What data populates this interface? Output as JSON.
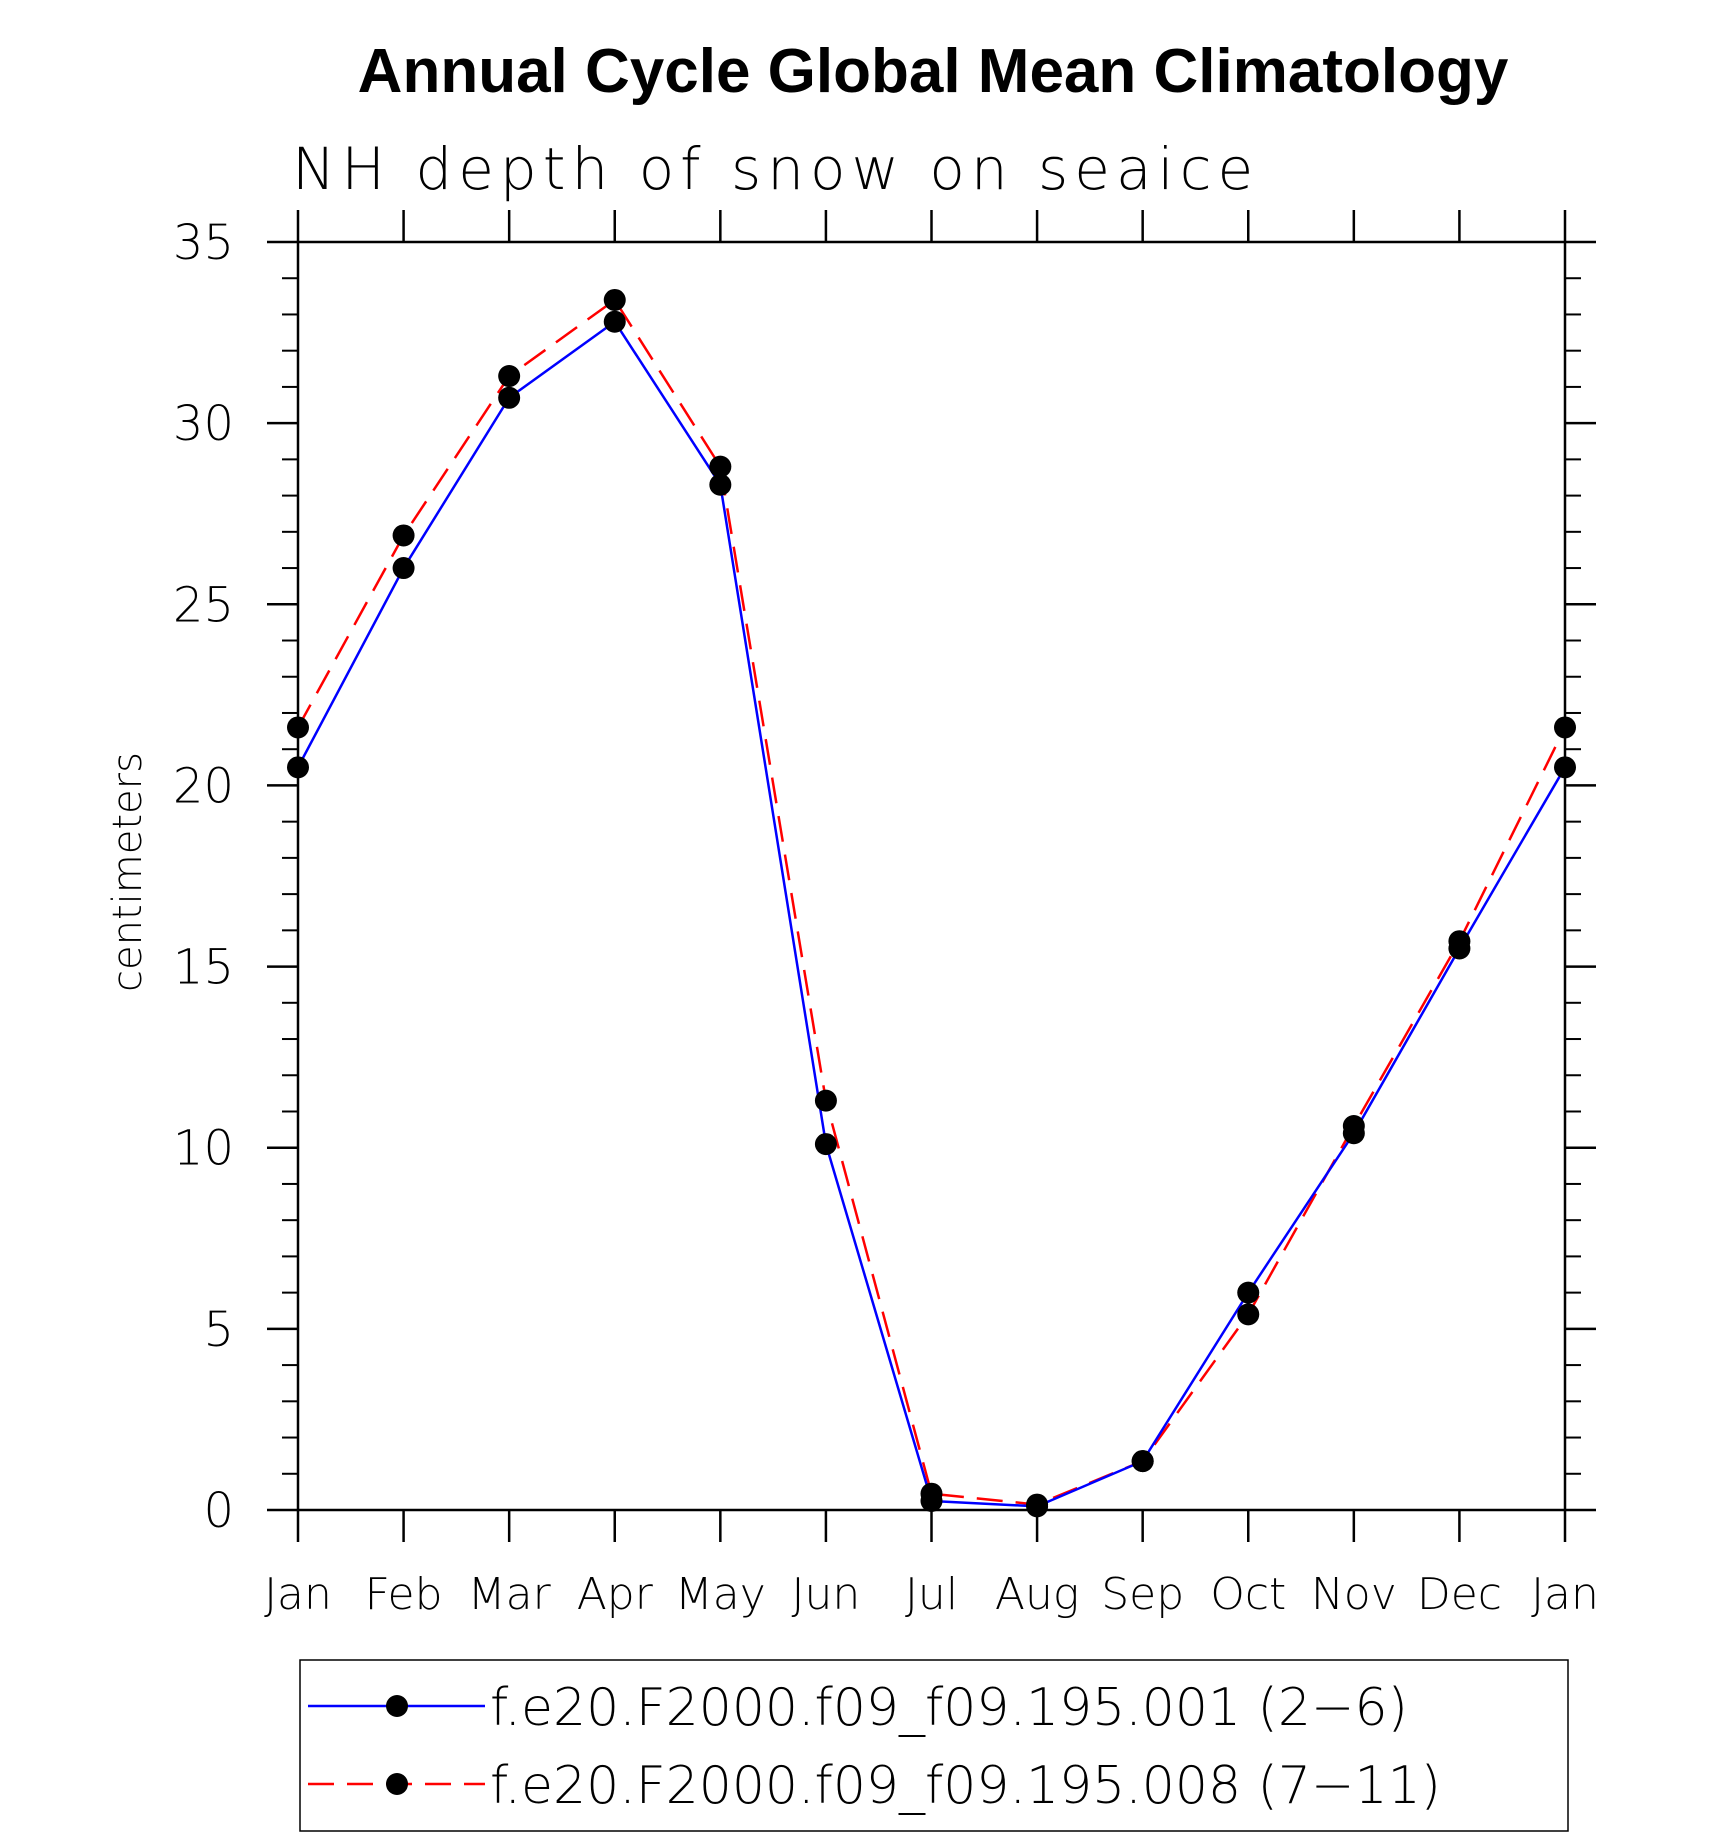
{
  "chart_data": {
    "type": "line",
    "title": "Annual Cycle Global Mean Climatology",
    "subtitle": "NH depth of snow on seaice",
    "xlabel": "",
    "ylabel": "centimeters",
    "categories": [
      "Jan",
      "Feb",
      "Mar",
      "Apr",
      "May",
      "Jun",
      "Jul",
      "Aug",
      "Sep",
      "Oct",
      "Nov",
      "Dec",
      "Jan"
    ],
    "ylim": [
      0,
      35
    ],
    "yticks": [
      0,
      5,
      10,
      15,
      20,
      25,
      30,
      35
    ],
    "yminor_step": 1,
    "grid": false,
    "legend_position": "bottom",
    "series": [
      {
        "name": "f.e20.F2000.f09_f09.195.001 (2−6)",
        "color": "#0000ff",
        "dash": "solid",
        "marker": "filled-circle",
        "values": [
          20.5,
          26.0,
          30.7,
          32.8,
          28.3,
          10.1,
          0.25,
          0.1,
          1.35,
          6.0,
          10.4,
          15.5,
          20.5
        ]
      },
      {
        "name": "f.e20.F2000.f09_f09.195.008 (7−11)",
        "color": "#ff0000",
        "dash": "dashed",
        "marker": "filled-circle",
        "values": [
          21.6,
          26.9,
          31.3,
          33.4,
          28.8,
          11.3,
          0.45,
          0.15,
          1.35,
          5.4,
          10.6,
          15.7,
          21.6
        ]
      }
    ]
  }
}
